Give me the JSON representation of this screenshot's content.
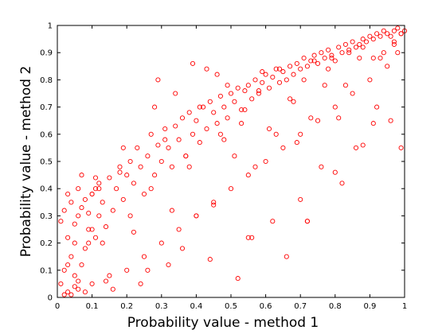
{
  "chart_data": {
    "type": "scatter",
    "title": "",
    "xlabel": "Probability value - method 1",
    "ylabel": "Probability value - method 2",
    "xlim": [
      0,
      1
    ],
    "ylim": [
      0,
      1
    ],
    "xticks": [
      "0",
      "0.1",
      "0.2",
      "0.3",
      "0.4",
      "0.5",
      "0.6",
      "0.7",
      "0.8",
      "0.9",
      "1"
    ],
    "yticks": [
      "0",
      "0.1",
      "0.2",
      "0.3",
      "0.4",
      "0.5",
      "0.6",
      "0.7",
      "0.8",
      "0.9",
      "1"
    ],
    "grid": false,
    "marker": "circle-open",
    "color": "#ff0000",
    "x": [
      0.01,
      0.01,
      0.02,
      0.02,
      0.03,
      0.03,
      0.04,
      0.04,
      0.05,
      0.05,
      0.06,
      0.06,
      0.07,
      0.07,
      0.08,
      0.08,
      0.09,
      0.09,
      0.1,
      0.1,
      0.11,
      0.11,
      0.12,
      0.12,
      0.13,
      0.14,
      0.15,
      0.16,
      0.17,
      0.18,
      0.19,
      0.2,
      0.21,
      0.22,
      0.23,
      0.24,
      0.25,
      0.26,
      0.27,
      0.28,
      0.29,
      0.3,
      0.31,
      0.32,
      0.33,
      0.34,
      0.35,
      0.36,
      0.37,
      0.38,
      0.39,
      0.4,
      0.41,
      0.42,
      0.43,
      0.44,
      0.45,
      0.46,
      0.47,
      0.48,
      0.49,
      0.5,
      0.51,
      0.52,
      0.53,
      0.54,
      0.55,
      0.56,
      0.57,
      0.58,
      0.59,
      0.6,
      0.61,
      0.62,
      0.63,
      0.64,
      0.65,
      0.66,
      0.67,
      0.68,
      0.69,
      0.7,
      0.71,
      0.72,
      0.73,
      0.74,
      0.75,
      0.76,
      0.77,
      0.78,
      0.79,
      0.8,
      0.81,
      0.82,
      0.83,
      0.84,
      0.85,
      0.86,
      0.87,
      0.88,
      0.89,
      0.9,
      0.91,
      0.92,
      0.93,
      0.94,
      0.95,
      0.96,
      0.97,
      0.98,
      0.99,
      1.0,
      0.02,
      0.04,
      0.06,
      0.08,
      0.1,
      0.15,
      0.2,
      0.25,
      0.3,
      0.35,
      0.4,
      0.45,
      0.5,
      0.55,
      0.6,
      0.65,
      0.7,
      0.75,
      0.8,
      0.85,
      0.9,
      0.95,
      0.98,
      0.03,
      0.05,
      0.12,
      0.18,
      0.22,
      0.28,
      0.33,
      0.38,
      0.43,
      0.48,
      0.53,
      0.58,
      0.63,
      0.68,
      0.73,
      0.78,
      0.83,
      0.88,
      0.93,
      0.97,
      0.99,
      0.16,
      0.24,
      0.32,
      0.4,
      0.56,
      0.72,
      0.8,
      0.88,
      0.96,
      0.14,
      0.26,
      0.36,
      0.44,
      0.52,
      0.62,
      0.7,
      0.76,
      0.86,
      0.92,
      0.03,
      0.05,
      0.07,
      0.09,
      0.11,
      0.21,
      0.31,
      0.41,
      0.51,
      0.61,
      0.71,
      0.81,
      0.91,
      0.06,
      0.1,
      0.13,
      0.19,
      0.27,
      0.37,
      0.47,
      0.57,
      0.67,
      0.77,
      0.87,
      0.97,
      0.34,
      0.49,
      0.64,
      0.79,
      0.94,
      0.29,
      0.46,
      0.59,
      0.74,
      0.84,
      0.45,
      0.55,
      0.66,
      0.72,
      0.82,
      0.91,
      0.99,
      0.39,
      0.54,
      0.69
    ],
    "y": [
      0.05,
      0.28,
      0.1,
      0.32,
      0.02,
      0.22,
      0.15,
      0.35,
      0.04,
      0.27,
      0.06,
      0.3,
      0.12,
      0.33,
      0.18,
      0.36,
      0.2,
      0.31,
      0.25,
      0.38,
      0.22,
      0.4,
      0.3,
      0.42,
      0.35,
      0.26,
      0.44,
      0.32,
      0.4,
      0.48,
      0.36,
      0.45,
      0.5,
      0.42,
      0.55,
      0.48,
      0.38,
      0.52,
      0.6,
      0.45,
      0.56,
      0.5,
      0.62,
      0.55,
      0.48,
      0.63,
      0.58,
      0.66,
      0.52,
      0.68,
      0.6,
      0.65,
      0.57,
      0.7,
      0.62,
      0.72,
      0.68,
      0.64,
      0.74,
      0.7,
      0.66,
      0.75,
      0.72,
      0.77,
      0.69,
      0.76,
      0.78,
      0.73,
      0.8,
      0.75,
      0.79,
      0.82,
      0.77,
      0.81,
      0.84,
      0.79,
      0.83,
      0.8,
      0.85,
      0.82,
      0.86,
      0.84,
      0.88,
      0.85,
      0.87,
      0.89,
      0.86,
      0.9,
      0.88,
      0.91,
      0.89,
      0.87,
      0.92,
      0.9,
      0.93,
      0.91,
      0.94,
      0.92,
      0.93,
      0.95,
      0.94,
      0.96,
      0.95,
      0.97,
      0.96,
      0.98,
      0.97,
      0.96,
      0.98,
      0.99,
      0.97,
      0.98,
      0.01,
      0.01,
      0.03,
      0.02,
      0.05,
      0.08,
      0.1,
      0.15,
      0.2,
      0.25,
      0.3,
      0.35,
      0.4,
      0.45,
      0.5,
      0.55,
      0.6,
      0.65,
      0.7,
      0.75,
      0.8,
      0.85,
      0.9,
      0.12,
      0.08,
      0.4,
      0.46,
      0.24,
      0.7,
      0.32,
      0.48,
      0.84,
      0.58,
      0.64,
      0.76,
      0.6,
      0.72,
      0.66,
      0.84,
      0.78,
      0.92,
      0.88,
      0.94,
      0.97,
      0.03,
      0.05,
      0.12,
      0.3,
      0.22,
      0.28,
      0.46,
      0.56,
      0.65,
      0.06,
      0.1,
      0.18,
      0.14,
      0.07,
      0.28,
      0.36,
      0.48,
      0.55,
      0.7,
      0.38,
      0.2,
      0.45,
      0.25,
      0.44,
      0.3,
      0.58,
      0.7,
      0.52,
      0.62,
      0.8,
      0.66,
      0.88,
      0.4,
      0.38,
      0.2,
      0.55,
      0.4,
      0.52,
      0.6,
      0.48,
      0.73,
      0.78,
      0.88,
      0.93,
      0.75,
      0.78,
      0.84,
      0.88,
      0.9,
      0.8,
      0.82,
      0.83,
      0.87,
      0.9,
      0.34,
      0.22,
      0.15,
      0.28,
      0.42,
      0.64,
      0.55,
      0.86,
      0.69,
      0.57
    ]
  }
}
